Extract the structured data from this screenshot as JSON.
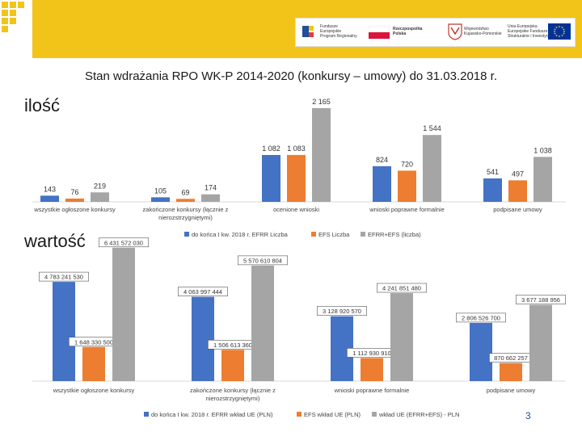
{
  "slide_title": "Stan wdrażania RPO WK-P 2014-2020 (konkursy – umowy) do 31.03.2018 r.",
  "page_number": "3",
  "header_logos": {
    "fe_line1": "Fundusze",
    "fe_line2": "Europejskie",
    "fe_line3": "Program Regionalny",
    "rp_line1": "Rzeczpospolita",
    "rp_line2": "Polska",
    "woj_line1": "Województwo",
    "woj_line2": "Kujawsko-Pomorskie",
    "ue_line1": "Unia Europejska",
    "ue_line2": "Europejskie Fundusze",
    "ue_line3": "Strukturalne i Inwestycyjne"
  },
  "colors": {
    "blue": "#4472c4",
    "orange": "#ed7d31",
    "gray": "#a5a5a5",
    "topband": "#f2c419",
    "gridline": "#d9d9d9"
  },
  "chart_data": [
    {
      "type": "bar",
      "title": "ilość",
      "categories": [
        "wszystkie ogłoszone konkursy",
        "zakończone konkursy (łącznie z nierozstrzygniętymi)",
        "ocenione wnioski",
        "wnioski poprawne formalnie",
        "podpisane umowy"
      ],
      "category_lines": [
        [
          "wszystkie ogłoszone konkursy"
        ],
        [
          "zakończone konkursy (łącznie z",
          "nierozstrzygniętymi)"
        ],
        [
          "ocenione wnioski"
        ],
        [
          "wnioski poprawne formalnie"
        ],
        [
          "podpisane umowy"
        ]
      ],
      "series": [
        {
          "name": "do końca I kw. 2018 r. EFRR Liczba",
          "values": [
            143,
            105,
            1082,
            824,
            541
          ],
          "labels": [
            "143",
            "105",
            "1 082",
            "824",
            "541"
          ]
        },
        {
          "name": "EFS Liczba",
          "values": [
            76,
            69,
            1083,
            720,
            497
          ],
          "labels": [
            "76",
            "69",
            "1 083",
            "720",
            "497"
          ]
        },
        {
          "name": "EFRR+EFS (liczba)",
          "values": [
            219,
            174,
            2165,
            1544,
            1038
          ],
          "labels": [
            "219",
            "174",
            "2 165",
            "1 544",
            "1 038"
          ]
        }
      ],
      "ylim": [
        0,
        2200
      ]
    },
    {
      "type": "bar",
      "title": "wartość",
      "categories": [
        "wszystkie ogłoszone konkursy",
        "zakończone konkursy (łącznie z nierozstrzygniętymi)",
        "wnioski poprawne formalnie",
        "podpisane umowy"
      ],
      "category_lines": [
        [
          "wszystkie ogłoszone konkursy"
        ],
        [
          "zakończone konkursy (łącznie z",
          "nierozstrzygniętymi)"
        ],
        [
          "wnioski poprawne formalnie"
        ],
        [
          "podpisane umowy"
        ]
      ],
      "series": [
        {
          "name": "do końca I kw. 2018 r. EFRR wkład UE (PLN)",
          "values": [
            4783241530,
            4063997444,
            3128920570,
            2806526700
          ],
          "labels": [
            "4 783 241 530",
            "4 063 997 444",
            "3 128 920 570",
            "2 806 526 700"
          ]
        },
        {
          "name": "EFS wkład UE (PLN)",
          "values": [
            1648330500,
            1506613360,
            1112930910,
            870662257
          ],
          "labels": [
            "1 648 330 500",
            "1 506 613 360",
            "1 112 930 910",
            "870 662 257"
          ]
        },
        {
          "name": "wkład UE (EFRR+EFS) - PLN",
          "values": [
            6431572030,
            5570610804,
            4241851480,
            3677188956
          ],
          "labels": [
            "6 431 572 030",
            "5 570 610 804",
            "4 241 851 480",
            "3 677 188 956"
          ]
        }
      ],
      "ylim": [
        0,
        6500000000
      ]
    }
  ]
}
